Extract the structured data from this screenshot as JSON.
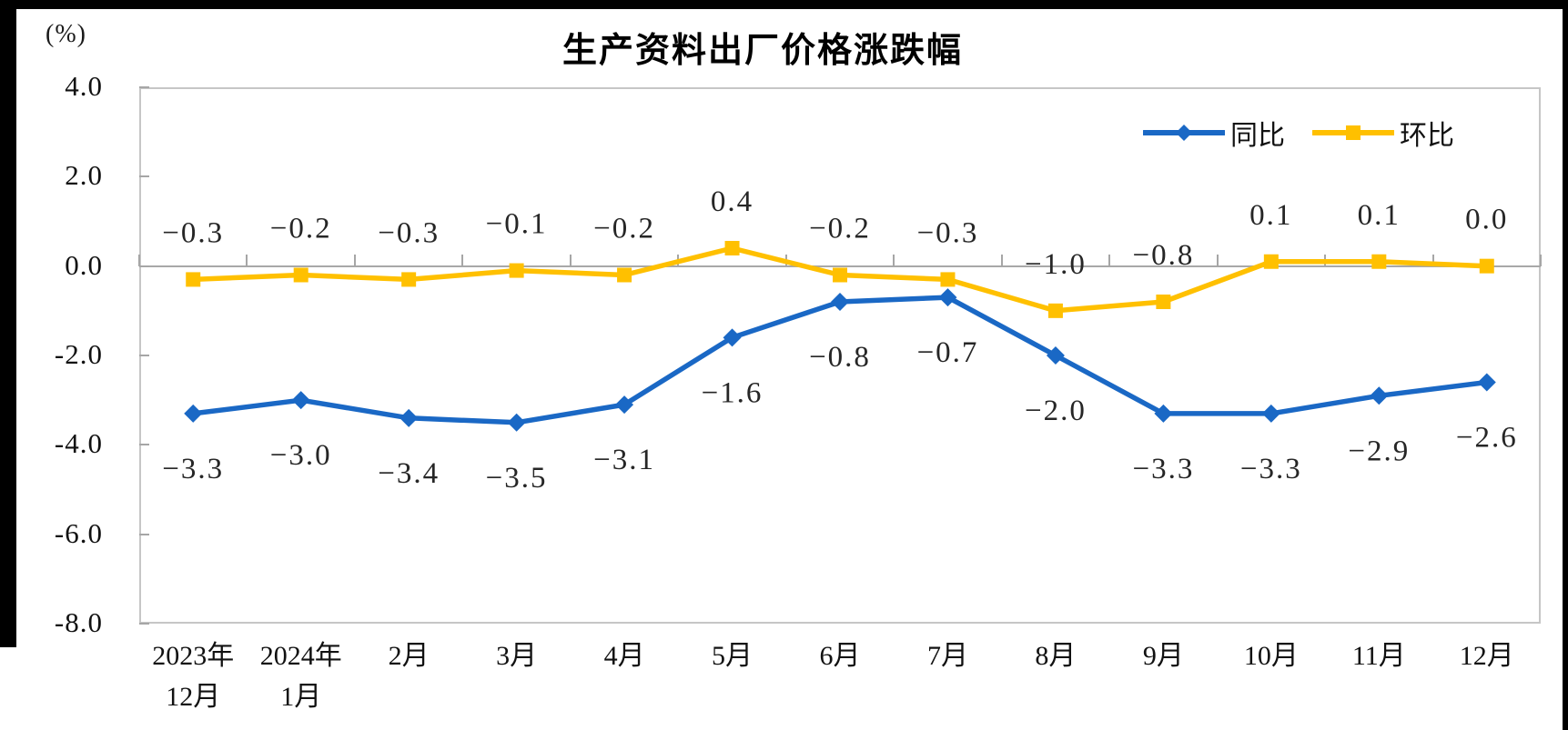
{
  "title": "生产资料出厂价格涨跌幅",
  "unit_label": "(%)",
  "colors": {
    "tongbi_blue": "#1a68c5",
    "huanbi_yellow": "#ffc000",
    "axis_tick_gray": "#a6a6a6",
    "plot_border_gray": "#c6c6c6",
    "zero_line_gray": "#a8a8a8",
    "data_label_text": "#262626",
    "frame_black": "#000000"
  },
  "y_axis": {
    "tick_labels": [
      "4.0",
      "2.0",
      "0.0",
      "-2.0",
      "-4.0",
      "-6.0",
      "-8.0"
    ],
    "max": 4.0,
    "min": -8.0,
    "step": 2.0
  },
  "x_axis": {
    "category_display_lines": [
      [
        "2023年",
        "12月"
      ],
      [
        "2024年",
        "1月"
      ],
      [
        "2月"
      ],
      [
        "3月"
      ],
      [
        "4月"
      ],
      [
        "5月"
      ],
      [
        "6月"
      ],
      [
        "7月"
      ],
      [
        "8月"
      ],
      [
        "9月"
      ],
      [
        "10月"
      ],
      [
        "11月"
      ],
      [
        "12月"
      ]
    ]
  },
  "legend": {
    "items": [
      {
        "label": "同比"
      },
      {
        "label": "环比"
      }
    ]
  },
  "chart_data": {
    "type": "line",
    "title": "生产资料出厂价格涨跌幅",
    "xlabel": "",
    "ylabel": "(%)",
    "ylim": [
      -8.0,
      4.0
    ],
    "y_tick_step": 2.0,
    "grid": "zero-baseline-only",
    "legend_position": "top-right-inside",
    "categories": [
      "2023年12月",
      "2024年1月",
      "2月",
      "3月",
      "4月",
      "5月",
      "6月",
      "7月",
      "8月",
      "9月",
      "10月",
      "11月",
      "12月"
    ],
    "series": [
      {
        "name": "同比",
        "color": "#1a68c5",
        "marker": "diamond",
        "label_position": "below",
        "values": [
          -3.3,
          -3.0,
          -3.4,
          -3.5,
          -3.1,
          -1.6,
          -0.8,
          -0.7,
          -2.0,
          -3.3,
          -3.3,
          -2.9,
          -2.6
        ],
        "labels": [
          "−3.3",
          "−3.0",
          "−3.4",
          "−3.5",
          "−3.1",
          "−1.6",
          "−0.8",
          "−0.7",
          "−2.0",
          "−3.3",
          "−3.3",
          "−2.9",
          "−2.6"
        ]
      },
      {
        "name": "环比",
        "color": "#ffc000",
        "marker": "square",
        "label_position": "above",
        "values": [
          -0.3,
          -0.2,
          -0.3,
          -0.1,
          -0.2,
          0.4,
          -0.2,
          -0.3,
          -1.0,
          -0.8,
          0.1,
          0.1,
          0.0
        ],
        "labels": [
          "−0.3",
          "−0.2",
          "−0.3",
          "−0.1",
          "−0.2",
          "0.4",
          "−0.2",
          "−0.3",
          "−1.0",
          "−0.8",
          "0.1",
          "0.1",
          "0.0"
        ]
      }
    ]
  }
}
